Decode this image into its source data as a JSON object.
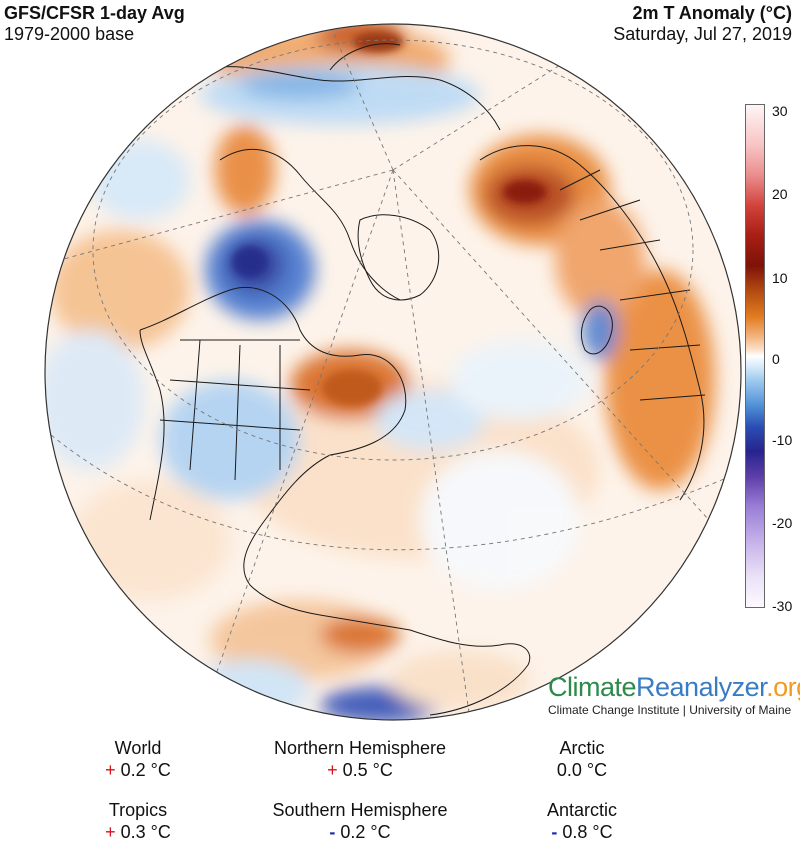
{
  "header": {
    "title_left": "GFS/CFSR 1-day Avg",
    "subtitle_left": "1979-2000 base",
    "title_right": "2m T Anomaly (°C)",
    "subtitle_right": "Saturday, Jul 27, 2019"
  },
  "colorbar": {
    "ticks": [
      "30",
      "20",
      "10",
      "0",
      "-10",
      "-20",
      "-30"
    ]
  },
  "logo": {
    "part1": "Climate",
    "part2": "Reanalyzer",
    "part3": ".org",
    "subtitle": "Climate Change Institute | University of Maine"
  },
  "stats": [
    {
      "label": "World",
      "sign": "+",
      "value": "0.2 °C"
    },
    {
      "label": "Northern Hemisphere",
      "sign": "+",
      "value": "0.5 °C"
    },
    {
      "label": "Arctic",
      "sign": "",
      "value": "0.0 °C"
    },
    {
      "label": "Tropics",
      "sign": "+",
      "value": "0.3 °C"
    },
    {
      "label": "Southern Hemisphere",
      "sign": "-",
      "value": "0.2 °C"
    },
    {
      "label": "Antarctic",
      "sign": "-",
      "value": "0.8 °C"
    }
  ],
  "colors": {
    "warm": "#e07a1f",
    "hot": "#a81e14",
    "cool": "#9cc8ee",
    "cold": "#2b4fb4",
    "neutral": "#ffffff"
  }
}
